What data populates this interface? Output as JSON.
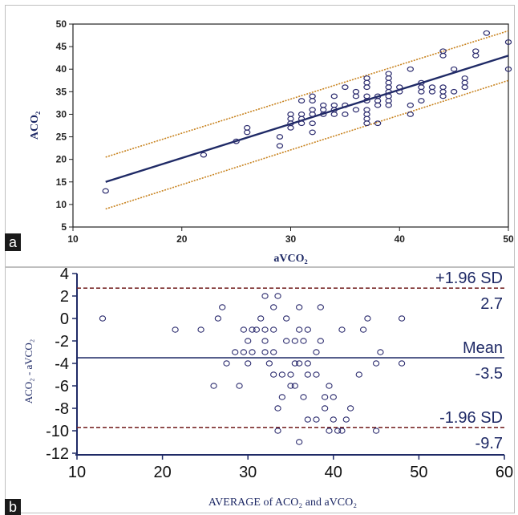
{
  "panels": {
    "a": {
      "letter": "a"
    },
    "b": {
      "letter": "b"
    }
  },
  "chart_data": [
    {
      "type": "scatter",
      "title": "",
      "xlabel": "aVCO₂",
      "ylabel": "ACO₂",
      "xlim": [
        10,
        50
      ],
      "ylim": [
        5,
        50
      ],
      "x_ticks": [
        10,
        20,
        30,
        40,
        50
      ],
      "y_ticks": [
        5,
        10,
        15,
        20,
        25,
        30,
        35,
        40,
        45,
        50
      ],
      "grid": false,
      "points": [
        [
          13,
          13
        ],
        [
          22,
          21
        ],
        [
          25,
          24
        ],
        [
          26,
          26
        ],
        [
          26,
          27
        ],
        [
          29,
          23
        ],
        [
          29,
          25
        ],
        [
          30,
          27
        ],
        [
          30,
          28
        ],
        [
          30,
          29
        ],
        [
          30,
          30
        ],
        [
          31,
          28
        ],
        [
          31,
          29
        ],
        [
          31,
          30
        ],
        [
          31,
          33
        ],
        [
          32,
          26
        ],
        [
          32,
          28
        ],
        [
          32,
          30
        ],
        [
          32,
          31
        ],
        [
          32,
          33
        ],
        [
          32,
          34
        ],
        [
          33,
          30
        ],
        [
          33,
          31
        ],
        [
          33,
          32
        ],
        [
          34,
          30
        ],
        [
          34,
          31
        ],
        [
          34,
          32
        ],
        [
          34,
          34
        ],
        [
          35,
          30
        ],
        [
          35,
          32
        ],
        [
          35,
          36
        ],
        [
          36,
          31
        ],
        [
          36,
          34
        ],
        [
          36,
          35
        ],
        [
          37,
          28
        ],
        [
          37,
          29
        ],
        [
          37,
          30
        ],
        [
          37,
          31
        ],
        [
          37,
          33
        ],
        [
          37,
          34
        ],
        [
          37,
          36
        ],
        [
          37,
          37
        ],
        [
          37,
          38
        ],
        [
          38,
          28
        ],
        [
          38,
          32
        ],
        [
          38,
          33
        ],
        [
          38,
          34
        ],
        [
          39,
          32
        ],
        [
          39,
          33
        ],
        [
          39,
          34
        ],
        [
          39,
          35
        ],
        [
          39,
          36
        ],
        [
          39,
          37
        ],
        [
          39,
          38
        ],
        [
          39,
          39
        ],
        [
          40,
          35
        ],
        [
          40,
          36
        ],
        [
          41,
          30
        ],
        [
          41,
          32
        ],
        [
          41,
          40
        ],
        [
          42,
          33
        ],
        [
          42,
          35
        ],
        [
          42,
          36
        ],
        [
          42,
          37
        ],
        [
          43,
          35
        ],
        [
          43,
          36
        ],
        [
          44,
          34
        ],
        [
          44,
          35
        ],
        [
          44,
          36
        ],
        [
          44,
          43
        ],
        [
          44,
          44
        ],
        [
          45,
          35
        ],
        [
          45,
          40
        ],
        [
          46,
          36
        ],
        [
          46,
          37
        ],
        [
          46,
          38
        ],
        [
          47,
          43
        ],
        [
          47,
          44
        ],
        [
          48,
          48
        ],
        [
          50,
          40
        ],
        [
          50,
          46
        ]
      ],
      "regression_line": {
        "x": [
          13,
          50
        ],
        "y": [
          15,
          43
        ]
      },
      "upper_band": {
        "x": [
          13,
          50
        ],
        "y": [
          20.5,
          48.5
        ]
      },
      "lower_band": {
        "x": [
          13,
          50
        ],
        "y": [
          9,
          37.5
        ]
      },
      "colors": {
        "points": "#2b2b6e",
        "line": "#1f2a66",
        "band": "#c8831f",
        "axis_label": "#1f2a66"
      }
    },
    {
      "type": "scatter",
      "title": "",
      "xlabel": "AVERAGE of ACO₂ and aVCO₂",
      "ylabel": "ACO₂ - aVCO₂",
      "xlim": [
        10,
        60
      ],
      "ylim": [
        -12,
        4
      ],
      "x_ticks": [
        10,
        20,
        30,
        40,
        50,
        60
      ],
      "y_ticks": [
        -12,
        -10,
        -8,
        -6,
        -4,
        -2,
        0,
        2,
        4
      ],
      "grid": false,
      "points": [
        [
          13,
          0
        ],
        [
          21.5,
          -1
        ],
        [
          24.5,
          -1
        ],
        [
          26,
          -6
        ],
        [
          26.5,
          0
        ],
        [
          27,
          1
        ],
        [
          27.5,
          -4
        ],
        [
          28.5,
          -3
        ],
        [
          29,
          -6
        ],
        [
          29.5,
          -1
        ],
        [
          29.5,
          -3
        ],
        [
          30,
          -2
        ],
        [
          30,
          -4
        ],
        [
          30.5,
          -1
        ],
        [
          30.5,
          -3
        ],
        [
          31,
          -1
        ],
        [
          31.5,
          0
        ],
        [
          32,
          -1
        ],
        [
          32,
          -2
        ],
        [
          32,
          -3
        ],
        [
          32,
          2
        ],
        [
          32.5,
          -4
        ],
        [
          33,
          -1
        ],
        [
          33,
          -3
        ],
        [
          33,
          -5
        ],
        [
          33,
          1
        ],
        [
          33.5,
          2
        ],
        [
          33.5,
          -8
        ],
        [
          33.5,
          -10
        ],
        [
          34,
          -5
        ],
        [
          34,
          -7
        ],
        [
          34.5,
          -2
        ],
        [
          34.5,
          0
        ],
        [
          35,
          -6
        ],
        [
          35,
          -5
        ],
        [
          35.5,
          -2
        ],
        [
          35.5,
          -4
        ],
        [
          35.5,
          -6
        ],
        [
          36,
          -1
        ],
        [
          36,
          -4
        ],
        [
          36,
          -11
        ],
        [
          36,
          1
        ],
        [
          36.5,
          -2
        ],
        [
          36.5,
          -7
        ],
        [
          37,
          -1
        ],
        [
          37,
          -4
        ],
        [
          37,
          -5
        ],
        [
          37,
          -9
        ],
        [
          38,
          -3
        ],
        [
          38,
          -5
        ],
        [
          38,
          -9
        ],
        [
          38.5,
          -2
        ],
        [
          38.5,
          1
        ],
        [
          39,
          -7
        ],
        [
          39,
          -8
        ],
        [
          39.5,
          -6
        ],
        [
          39.5,
          -10
        ],
        [
          40,
          -7
        ],
        [
          40,
          -9
        ],
        [
          40.5,
          -10
        ],
        [
          41,
          -10
        ],
        [
          41,
          -1
        ],
        [
          41.5,
          -9
        ],
        [
          42,
          -8
        ],
        [
          43,
          -5
        ],
        [
          43.5,
          -1
        ],
        [
          44,
          0
        ],
        [
          45,
          -10
        ],
        [
          45,
          -4
        ],
        [
          45.5,
          -3
        ],
        [
          48,
          0
        ],
        [
          48,
          -4
        ]
      ],
      "reference_lines": [
        {
          "name": "+1.96 SD",
          "value": 2.7,
          "label_value": "2.7",
          "style": "dashed"
        },
        {
          "name": "Mean",
          "value": -3.5,
          "label_value": "-3.5",
          "style": "solid"
        },
        {
          "name": "-1.96 SD",
          "value": -9.7,
          "label_value": "-9.7",
          "style": "dashed"
        }
      ],
      "colors": {
        "points": "#2b2b6e",
        "mean_line": "#1f2a66",
        "sd_line": "#7a2a2a",
        "axis_label": "#1f2a66",
        "ref_text": "#1f2a66"
      }
    }
  ]
}
